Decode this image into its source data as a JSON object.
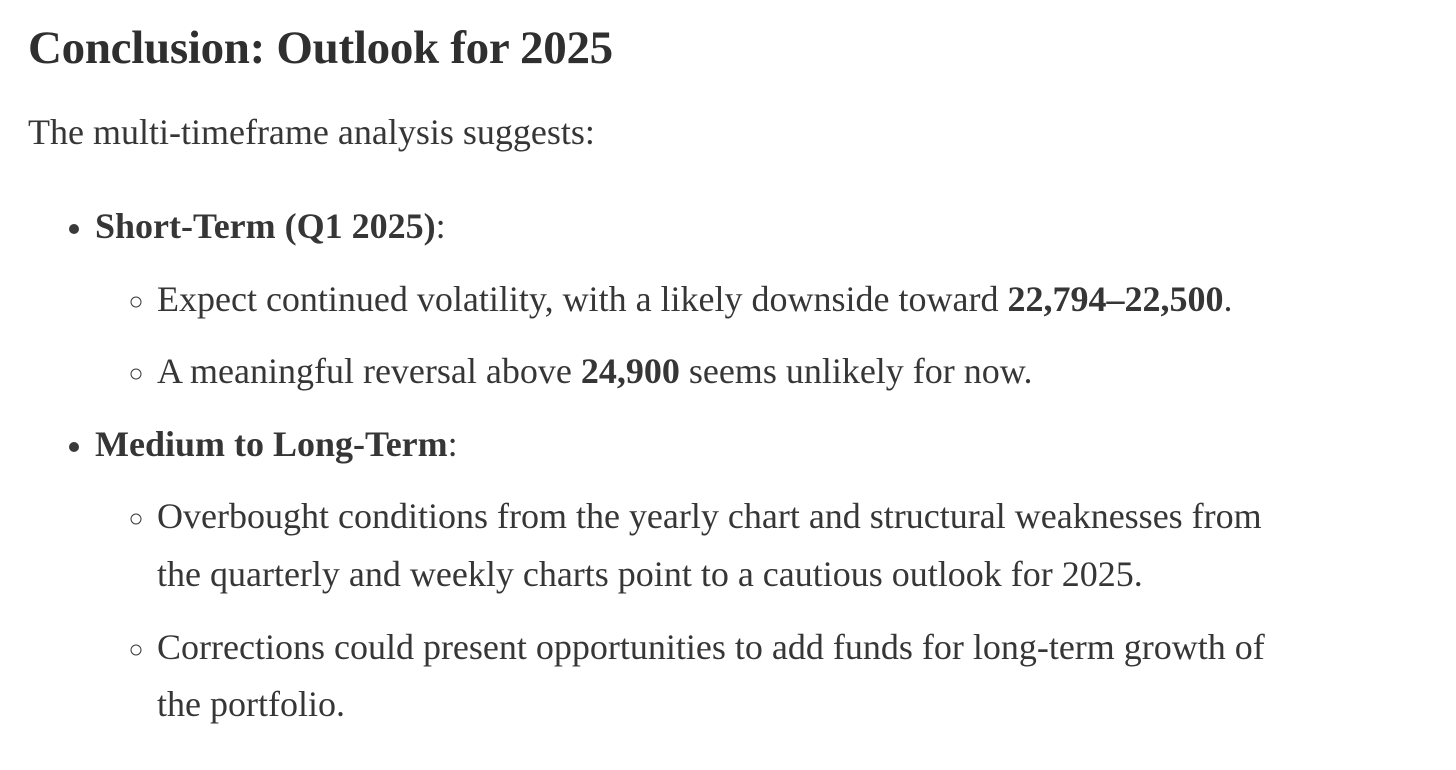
{
  "page": {
    "background_color": "#ffffff",
    "text_color": "#363636",
    "heading_color": "#2f2f2f"
  },
  "article": {
    "heading": "Conclusion: Outlook for 2025",
    "intro": "The multi-timeframe analysis suggests:",
    "outlook_list": [
      {
        "title_segments": [
          {
            "text": "Short-Term (Q1 2025)",
            "bold": true
          },
          {
            "text": ":",
            "bold": false
          }
        ],
        "sub_items": [
          {
            "segments": [
              {
                "text": "Expect continued volatility, with a likely downside toward ",
                "bold": false
              },
              {
                "text": "22,794–22,500",
                "bold": true
              },
              {
                "text": ".",
                "bold": false
              }
            ]
          },
          {
            "segments": [
              {
                "text": "A meaningful reversal above ",
                "bold": false
              },
              {
                "text": "24,900",
                "bold": true
              },
              {
                "text": " seems unlikely for now.",
                "bold": false
              }
            ]
          }
        ]
      },
      {
        "title_segments": [
          {
            "text": "Medium to Long-Term",
            "bold": true
          },
          {
            "text": ":",
            "bold": false
          }
        ],
        "sub_items": [
          {
            "segments": [
              {
                "text": "Overbought conditions from the yearly chart and structural weaknesses from\nthe quarterly and weekly charts point to a cautious outlook for 2025.",
                "bold": false
              }
            ]
          },
          {
            "segments": [
              {
                "text": "Corrections could present opportunities to add funds for long-term growth of\nthe portfolio.",
                "bold": false
              }
            ]
          }
        ]
      }
    ]
  }
}
